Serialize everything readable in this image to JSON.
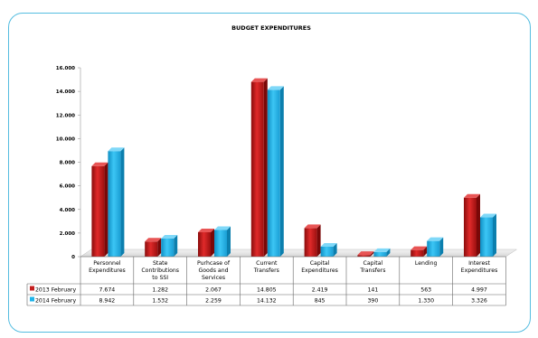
{
  "chart_data": {
    "type": "bar",
    "title": "BUDGET EXPENDITURES",
    "categories": [
      [
        "Personnel",
        "Expenditures"
      ],
      [
        "State",
        "Contributions",
        "to SSI"
      ],
      [
        "Purhcase of",
        "Goods and",
        "Services"
      ],
      [
        "Current",
        "Transfers"
      ],
      [
        "Capital",
        "Expenditures"
      ],
      [
        "Capital",
        "Transfers"
      ],
      [
        "Lending"
      ],
      [
        "Interest",
        "Expenditures"
      ]
    ],
    "series": [
      {
        "name": "2013 February",
        "color": "#c41e1e",
        "values": [
          7674,
          1282,
          2067,
          14805,
          2419,
          141,
          563,
          4997
        ],
        "labels": [
          "7.674",
          "1.282",
          "2.067",
          "14.805",
          "2.419",
          "141",
          "563",
          "4.997"
        ]
      },
      {
        "name": "2014 February",
        "color": "#1fb4ea",
        "values": [
          8942,
          1532,
          2259,
          14132,
          845,
          390,
          1330,
          3326
        ],
        "labels": [
          "8.942",
          "1.532",
          "2.259",
          "14.132",
          "845",
          "390",
          "1.330",
          "3.326"
        ]
      }
    ],
    "ylim": [
      0,
      16000
    ],
    "yticks": [
      "0",
      "2.000",
      "4.000",
      "6.000",
      "8.000",
      "10.000",
      "12.000",
      "14.000",
      "16.000"
    ],
    "grid": false,
    "legend": "table-below"
  }
}
